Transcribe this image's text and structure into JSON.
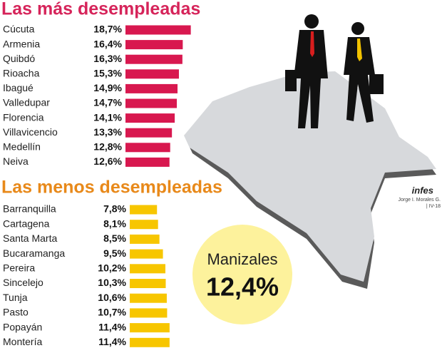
{
  "chart_data": [
    {
      "type": "bar",
      "orientation": "horizontal",
      "title": "Las más desempleadas",
      "color": "#d8184f",
      "categories": [
        "Cúcuta",
        "Armenia",
        "Quibdó",
        "Rioacha",
        "Ibagué",
        "Valledupar",
        "Florencia",
        "Villavicencio",
        "Medellín",
        "Neiva"
      ],
      "values": [
        18.7,
        16.4,
        16.3,
        15.3,
        14.9,
        14.7,
        14.1,
        13.3,
        12.8,
        12.6
      ],
      "value_labels": [
        "18,7%",
        "16,4%",
        "16,3%",
        "15,3%",
        "14,9%",
        "14,7%",
        "14,1%",
        "13,3%",
        "12,8%",
        "12,6%"
      ],
      "xlim": [
        0,
        20
      ]
    },
    {
      "type": "bar",
      "orientation": "horizontal",
      "title": "Las menos desempleadas",
      "color": "#f7c600",
      "categories": [
        "Barranquilla",
        "Cartagena",
        "Santa Marta",
        "Bucaramanga",
        "Pereira",
        "Sincelejo",
        "Tunja",
        "Pasto",
        "Popayán",
        "Montería"
      ],
      "values": [
        7.8,
        8.1,
        8.5,
        9.5,
        10.2,
        10.3,
        10.6,
        10.7,
        11.4,
        11.4
      ],
      "value_labels": [
        "7,8%",
        "8,1%",
        "8,5%",
        "9,5%",
        "10,2%",
        "10,3%",
        "10,6%",
        "10,7%",
        "11,4%",
        "11,4%"
      ],
      "xlim": [
        0,
        20
      ]
    }
  ],
  "callout": {
    "label": "Manizales",
    "value": "12,4%"
  },
  "credit": {
    "logo": "infes",
    "author": "Jorge I. Morales G.",
    "date": "| IV-18"
  }
}
